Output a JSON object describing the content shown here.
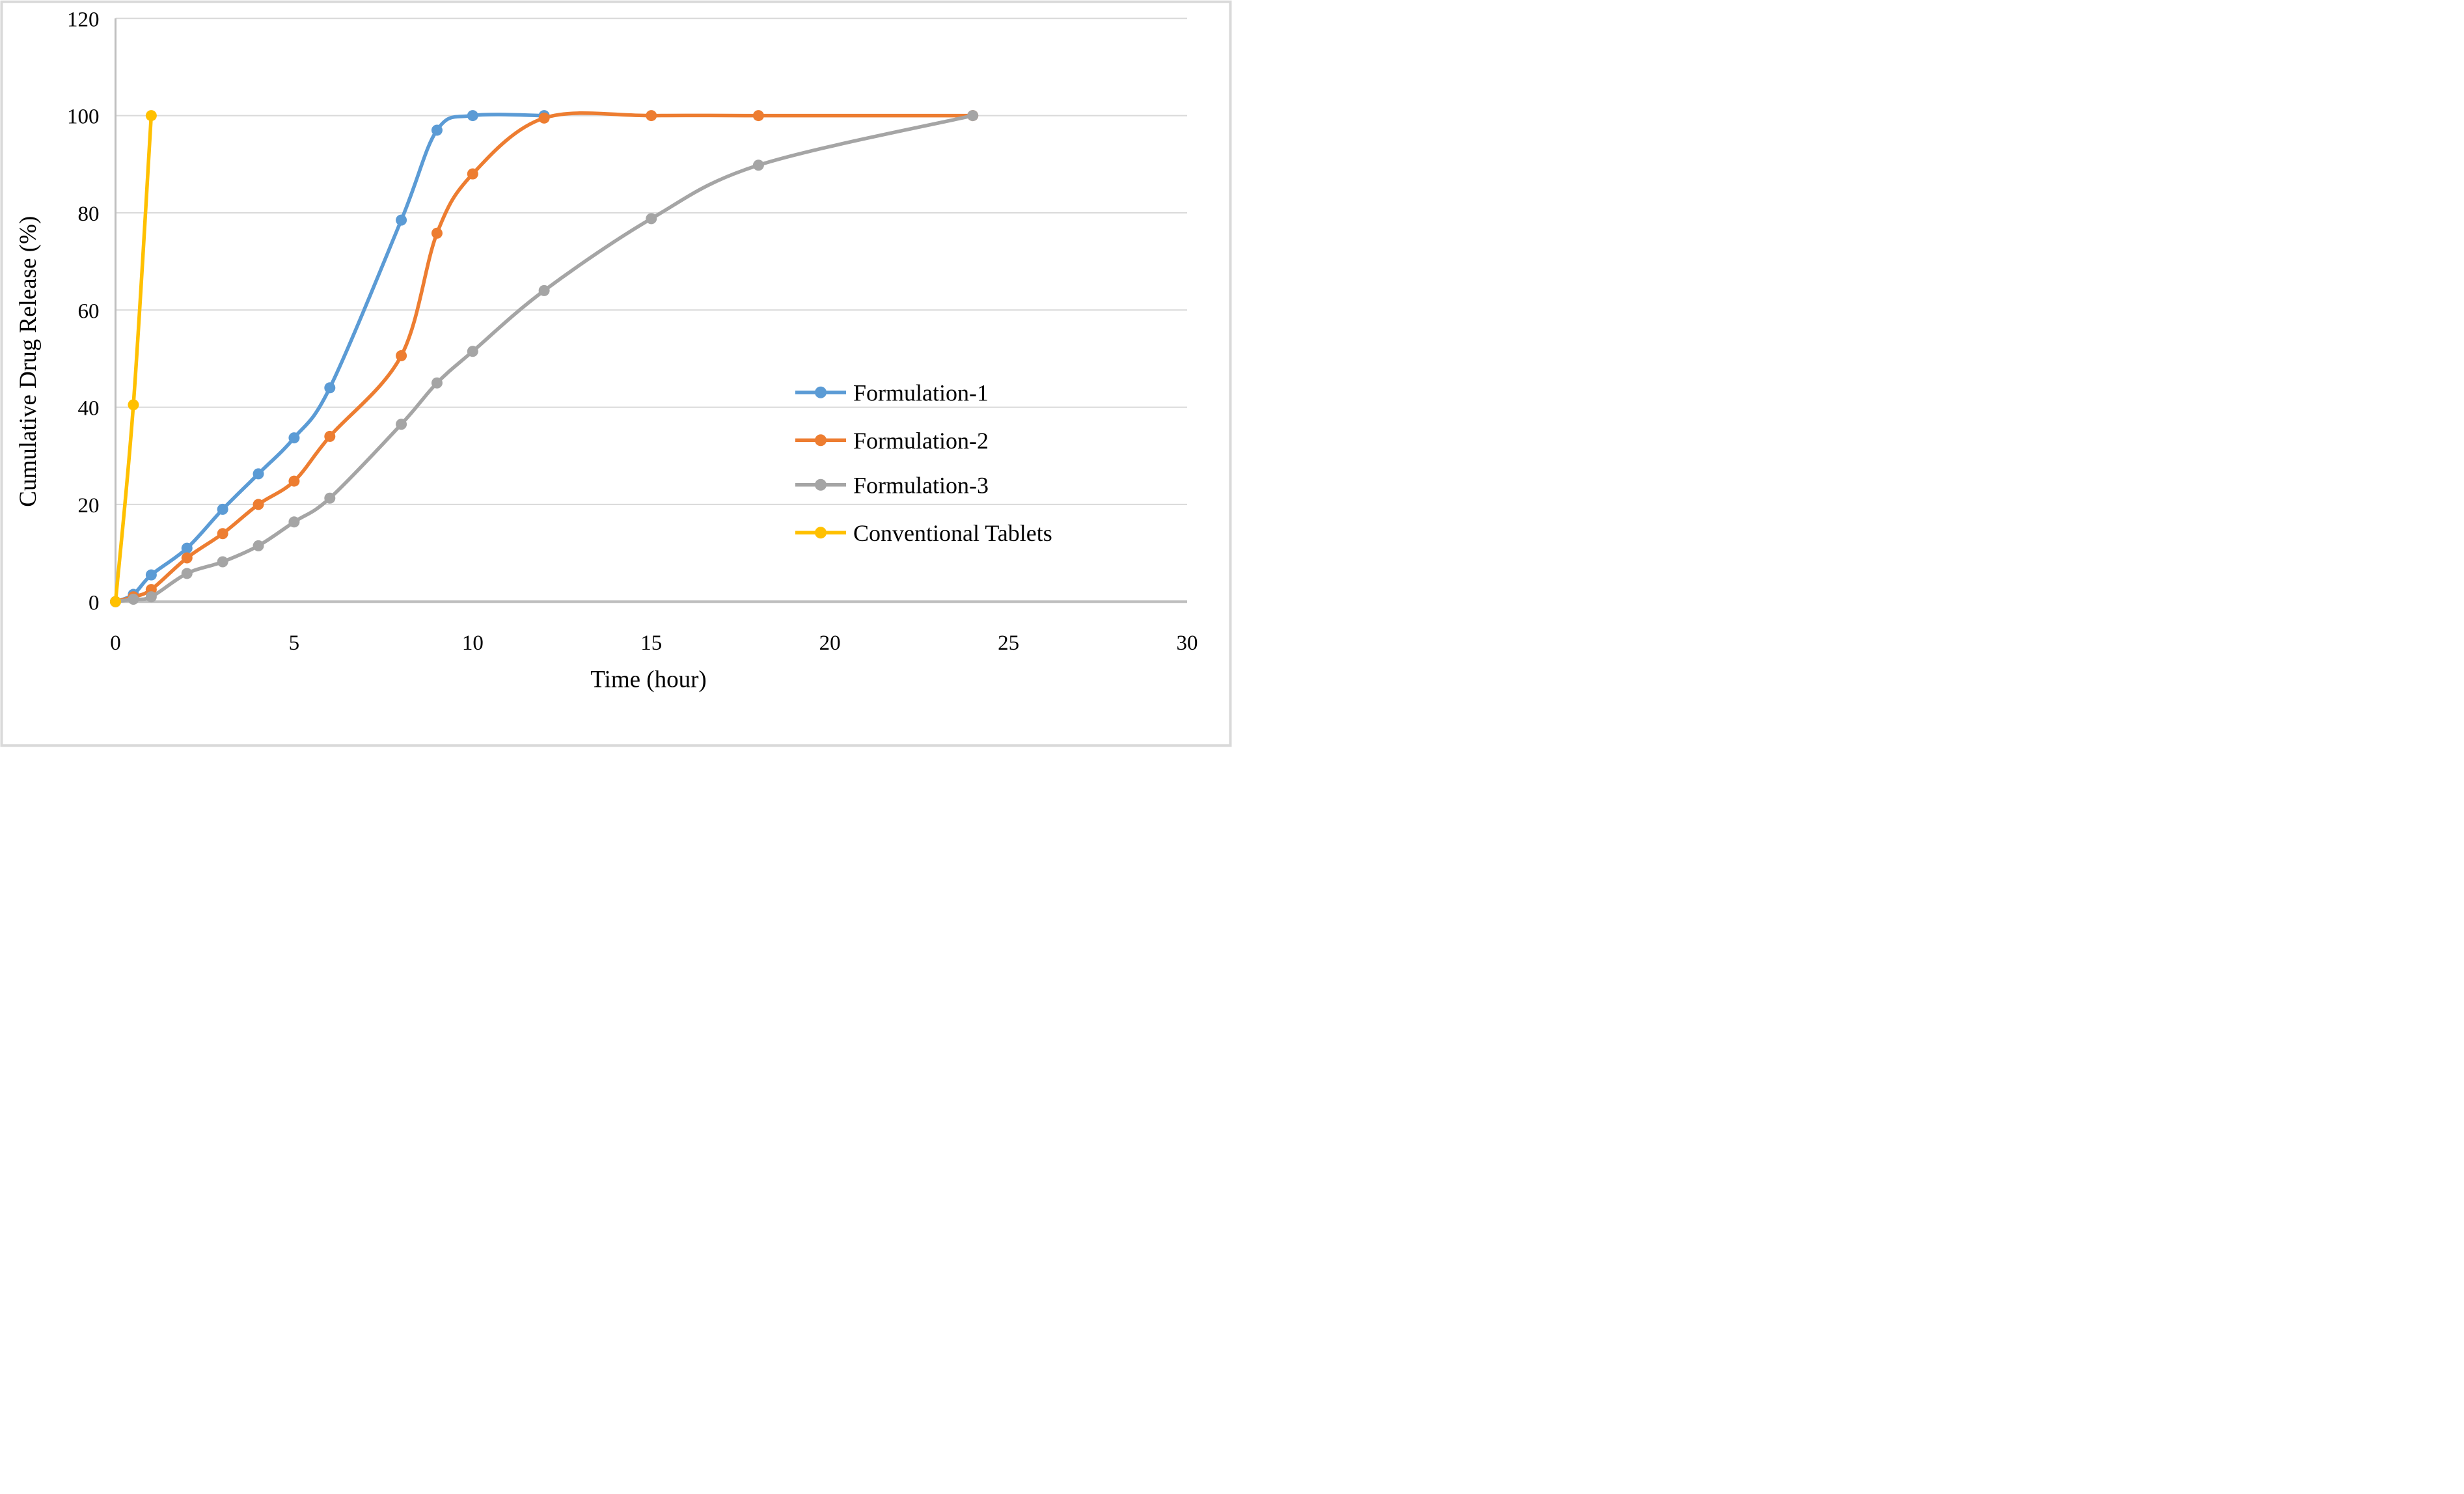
{
  "figure": {
    "background": "#ffffff",
    "border_color": "#d9d9d9"
  },
  "chart_data": {
    "type": "line",
    "title": "",
    "xlabel": "Time  (hour)",
    "ylabel": "Cumulative  Drug Release (%)",
    "xlim": [
      0,
      30
    ],
    "ylim": [
      0,
      120
    ],
    "x_ticks": [
      0,
      5,
      10,
      15,
      20,
      25,
      30
    ],
    "y_ticks": [
      0,
      20,
      40,
      60,
      80,
      100,
      120
    ],
    "grid": "horizontal-only",
    "gridline_color": "#d9d9d9",
    "axis_line_color": "#bfbfbf",
    "legend_position": "inside-right",
    "series": [
      {
        "name": "Formulation-1",
        "color": "#5b9bd5",
        "points": [
          [
            0,
            0
          ],
          [
            0.5,
            1.5
          ],
          [
            1,
            5.5
          ],
          [
            2,
            11
          ],
          [
            3,
            19
          ],
          [
            4,
            26.3
          ],
          [
            5,
            33.7
          ],
          [
            6,
            44
          ],
          [
            8,
            78.5
          ],
          [
            9,
            97
          ],
          [
            10,
            100
          ],
          [
            12,
            100
          ]
        ]
      },
      {
        "name": "Formulation-2",
        "color": "#ed7d31",
        "points": [
          [
            0,
            0
          ],
          [
            0.5,
            1
          ],
          [
            1,
            2.5
          ],
          [
            2,
            9
          ],
          [
            3,
            14
          ],
          [
            4,
            20
          ],
          [
            5,
            24.8
          ],
          [
            6,
            34
          ],
          [
            8,
            50.6
          ],
          [
            9,
            75.8
          ],
          [
            10,
            88
          ],
          [
            12,
            99.5
          ],
          [
            15,
            100
          ],
          [
            18,
            100
          ],
          [
            24,
            100
          ]
        ]
      },
      {
        "name": "Formulation-3",
        "color": "#a5a5a5",
        "points": [
          [
            0,
            0
          ],
          [
            0.5,
            0.5
          ],
          [
            1,
            1
          ],
          [
            2,
            5.8
          ],
          [
            3,
            8.2
          ],
          [
            4,
            11.5
          ],
          [
            5,
            16.4
          ],
          [
            6,
            21.3
          ],
          [
            8,
            36.5
          ],
          [
            9,
            45
          ],
          [
            10,
            51.5
          ],
          [
            12,
            64
          ],
          [
            15,
            78.8
          ],
          [
            18,
            89.8
          ],
          [
            24,
            100
          ]
        ]
      },
      {
        "name": "Conventional Tablets",
        "color": "#ffc000",
        "points": [
          [
            0,
            0
          ],
          [
            0.5,
            40.5
          ],
          [
            1,
            100
          ]
        ]
      }
    ]
  }
}
